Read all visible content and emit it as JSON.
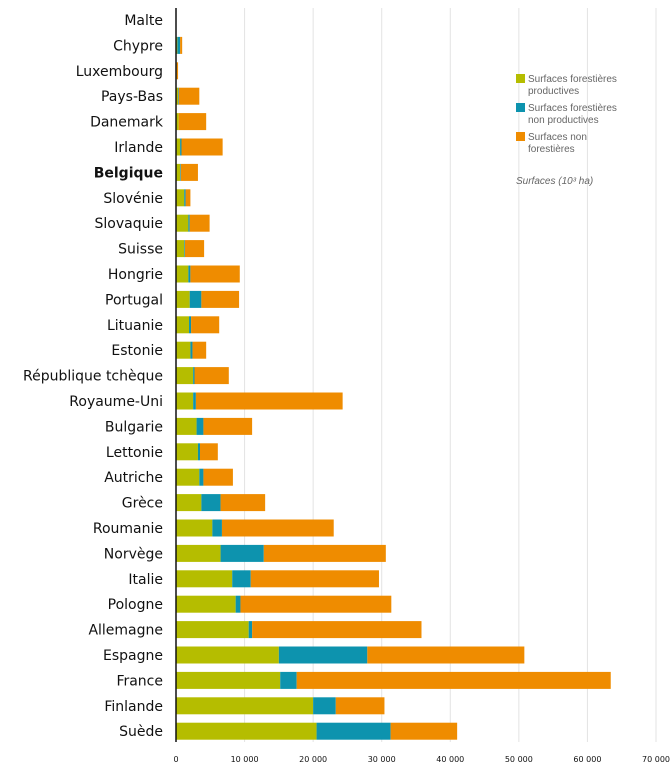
{
  "chart_data": {
    "type": "bar",
    "orientation": "horizontal",
    "stacked": true,
    "categories": [
      "Malte",
      "Chypre",
      "Luxembourg",
      "Pays-Bas",
      "Danemark",
      "Irlande",
      "Belgique",
      "Slovénie",
      "Slovaquie",
      "Suisse",
      "Hongrie",
      "Portugal",
      "Lituanie",
      "Estonie",
      "République tchèque",
      "Royaume-Uni",
      "Bulgarie",
      "Lettonie",
      "Autriche",
      "Grèce",
      "Roumanie",
      "Norvège",
      "Italie",
      "Pologne",
      "Allemagne",
      "Espagne",
      "France",
      "Finlande",
      "Suède"
    ],
    "highlighted_category": "Belgique",
    "series": [
      {
        "name": "Surfaces forestières productives",
        "color": "#b5bd00",
        "values": [
          0,
          200,
          100,
          300,
          400,
          600,
          600,
          1200,
          1800,
          1200,
          1800,
          2000,
          1900,
          2100,
          2500,
          2500,
          3000,
          3200,
          3400,
          3700,
          5300,
          6500,
          8200,
          8700,
          10600,
          15000,
          15200,
          20000,
          20500
        ]
      },
      {
        "name": "Surfaces forestières non productives",
        "color": "#0d93ae",
        "values": [
          0,
          400,
          0,
          100,
          0,
          200,
          100,
          200,
          200,
          100,
          300,
          1700,
          300,
          300,
          200,
          400,
          1000,
          300,
          600,
          2800,
          1400,
          6300,
          2700,
          700,
          500,
          12900,
          2400,
          3300,
          10800
        ]
      },
      {
        "name": "Surfaces non forestières",
        "color": "#ef8c00",
        "values": [
          20,
          300,
          200,
          3000,
          4000,
          6000,
          2500,
          700,
          2900,
          2800,
          7200,
          5500,
          4100,
          2000,
          5000,
          21400,
          7100,
          2600,
          4300,
          6500,
          16300,
          17800,
          18700,
          22000,
          24700,
          22900,
          45800,
          7100,
          9700
        ]
      }
    ],
    "unit_label": "Surfaces (10³ ha)",
    "xlim": [
      0,
      70000
    ],
    "xticks": [
      0,
      10000,
      20000,
      30000,
      40000,
      50000,
      60000,
      70000
    ],
    "xtick_labels": [
      "0",
      "10 000",
      "20 000",
      "30 000",
      "40 000",
      "50 000",
      "60 000",
      "70 000"
    ],
    "grid": "vertical",
    "legend_position": "top-right"
  }
}
